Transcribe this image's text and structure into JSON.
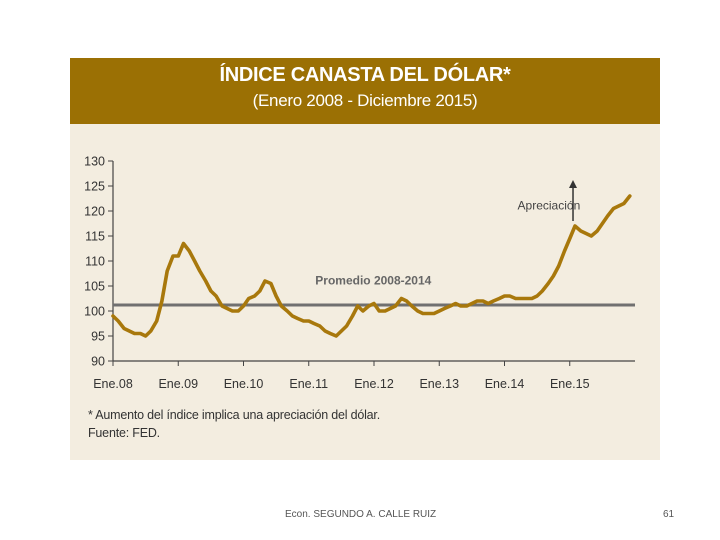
{
  "header": {
    "title": "ÍNDICE CANASTA DEL DÓLAR*",
    "subtitle": "(Enero 2008 - Diciembre 2015)"
  },
  "notes": {
    "footnote": "* Aumento del índice implica una apreciación del dólar.",
    "source": "Fuente: FED."
  },
  "footer": {
    "author": "Econ. SEGUNDO A. CALLE RUIZ",
    "page": "61"
  },
  "colors": {
    "header_bg": "#9b7004",
    "panel_bg": "#f3ede0",
    "series": "#a8780c",
    "average_line": "#707070"
  },
  "chart_data": {
    "type": "line",
    "title": "ÍNDICE CANASTA DEL DÓLAR*",
    "subtitle": "(Enero 2008 - Diciembre 2015)",
    "xlabel": "",
    "ylabel": "",
    "ylim": [
      90,
      130
    ],
    "yticks": [
      90,
      95,
      100,
      105,
      110,
      115,
      120,
      125,
      130
    ],
    "xticks": [
      "Ene.08",
      "Ene.09",
      "Ene.10",
      "Ene.11",
      "Ene.12",
      "Ene.13",
      "Ene.14",
      "Ene.15"
    ],
    "xlim": [
      2008.0,
      2016.0
    ],
    "series": [
      {
        "name": "Índice canasta del dólar",
        "x": [
          2008.0,
          2008.08,
          2008.17,
          2008.25,
          2008.33,
          2008.42,
          2008.5,
          2008.58,
          2008.67,
          2008.75,
          2008.83,
          2008.92,
          2009.0,
          2009.08,
          2009.17,
          2009.25,
          2009.33,
          2009.42,
          2009.5,
          2009.58,
          2009.67,
          2009.75,
          2009.83,
          2009.92,
          2010.0,
          2010.08,
          2010.17,
          2010.25,
          2010.33,
          2010.42,
          2010.5,
          2010.58,
          2010.67,
          2010.75,
          2010.83,
          2010.92,
          2011.0,
          2011.08,
          2011.17,
          2011.25,
          2011.33,
          2011.42,
          2011.5,
          2011.58,
          2011.67,
          2011.75,
          2011.83,
          2011.92,
          2012.0,
          2012.08,
          2012.17,
          2012.25,
          2012.33,
          2012.42,
          2012.5,
          2012.58,
          2012.67,
          2012.75,
          2012.83,
          2012.92,
          2013.0,
          2013.08,
          2013.17,
          2013.25,
          2013.33,
          2013.42,
          2013.5,
          2013.58,
          2013.67,
          2013.75,
          2013.83,
          2013.92,
          2014.0,
          2014.08,
          2014.17,
          2014.25,
          2014.33,
          2014.42,
          2014.5,
          2014.58,
          2014.67,
          2014.75,
          2014.83,
          2014.92,
          2015.0,
          2015.08,
          2015.17,
          2015.25,
          2015.33,
          2015.42,
          2015.5,
          2015.58,
          2015.67,
          2015.75,
          2015.83,
          2015.92
        ],
        "values": [
          99,
          98,
          96.5,
          96,
          95.5,
          95.5,
          95,
          96,
          98,
          102,
          108,
          111,
          111,
          113.5,
          112,
          110,
          108,
          106,
          104,
          103,
          101,
          100.5,
          100,
          100,
          101,
          102.5,
          103,
          104,
          106,
          105.5,
          103,
          101,
          100,
          99,
          98.5,
          98,
          98,
          97.5,
          97,
          96,
          95.5,
          95,
          96,
          97,
          99,
          101,
          100,
          101,
          101.5,
          100,
          100,
          100.5,
          101,
          102.5,
          102,
          101,
          100,
          99.5,
          99.5,
          99.5,
          100,
          100.5,
          101,
          101.5,
          101,
          101,
          101.5,
          102,
          102,
          101.5,
          102,
          102.5,
          103,
          103,
          102.5,
          102.5,
          102.5,
          102.5,
          103,
          104,
          105.5,
          107,
          109,
          112,
          114.5,
          117,
          116,
          115.5,
          115,
          116,
          117.5,
          119,
          120.5,
          121,
          121.5,
          123
        ]
      },
      {
        "name": "Promedio 2008-2014",
        "values": [
          101.2,
          101.2
        ]
      }
    ],
    "annotations": [
      {
        "text": "Promedio 2008-2014",
        "x": 2011.1,
        "y": 105.3
      },
      {
        "text": "Apreciación",
        "x": 2014.2,
        "y": 120.3
      }
    ],
    "grid": false,
    "legend": "none"
  }
}
